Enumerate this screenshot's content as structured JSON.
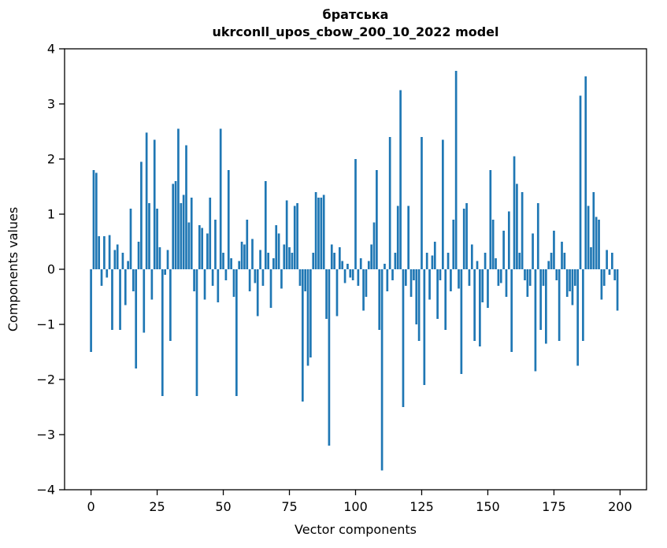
{
  "chart_data": {
    "type": "bar",
    "title": "братська",
    "subtitle": "ukrconll_upos_cbow_200_10_2022 model",
    "xlabel": "Vector components",
    "ylabel": "Components values",
    "xlim": [
      -10,
      210
    ],
    "ylim": [
      -4,
      4
    ],
    "x_ticks": [
      0,
      25,
      50,
      75,
      100,
      125,
      150,
      175,
      200
    ],
    "y_ticks": [
      -4,
      -3,
      -2,
      -1,
      0,
      1,
      2,
      3,
      4
    ],
    "bar_color": "#1f77b4",
    "axis_color": "#000000",
    "grid": false,
    "legend": "none",
    "n_components": 200,
    "values": [
      -1.5,
      1.8,
      1.75,
      0.6,
      -0.3,
      0.6,
      -0.15,
      0.62,
      -1.1,
      0.35,
      0.45,
      -1.1,
      0.3,
      -0.65,
      0.15,
      1.1,
      -0.4,
      -1.8,
      0.5,
      1.95,
      -1.15,
      2.48,
      1.2,
      -0.55,
      2.35,
      1.1,
      0.4,
      -2.3,
      -0.1,
      0.35,
      -1.3,
      1.55,
      1.6,
      2.55,
      1.2,
      1.35,
      2.25,
      0.85,
      1.3,
      -0.4,
      -2.3,
      0.8,
      0.75,
      -0.55,
      0.65,
      1.3,
      -0.3,
      0.9,
      -0.6,
      2.55,
      0.3,
      -0.2,
      1.8,
      0.2,
      -0.5,
      -2.3,
      0.15,
      0.5,
      0.45,
      0.9,
      -0.4,
      0.55,
      -0.25,
      -0.85,
      0.35,
      -0.3,
      1.6,
      0.3,
      -0.7,
      0.2,
      0.8,
      0.65,
      -0.35,
      0.45,
      1.25,
      0.4,
      0.3,
      1.15,
      1.2,
      -0.3,
      -2.4,
      -0.4,
      -1.75,
      -1.6,
      0.3,
      1.4,
      1.3,
      1.3,
      1.35,
      -0.9,
      -3.2,
      0.45,
      0.3,
      -0.85,
      0.4,
      0.15,
      -0.25,
      0.1,
      -0.15,
      -0.2,
      2.0,
      -0.3,
      0.2,
      -0.75,
      -0.5,
      0.15,
      0.45,
      0.85,
      1.8,
      -1.1,
      -3.65,
      0.1,
      -0.4,
      2.4,
      -0.2,
      0.3,
      1.15,
      3.25,
      -2.5,
      -0.3,
      1.15,
      -0.5,
      -0.2,
      -1.0,
      -1.3,
      2.4,
      -2.1,
      0.3,
      -0.55,
      0.25,
      0.5,
      -0.9,
      -0.2,
      2.35,
      -1.1,
      0.3,
      -0.4,
      0.9,
      3.6,
      -0.35,
      -1.9,
      1.1,
      1.2,
      -0.3,
      0.45,
      -1.3,
      0.15,
      -1.4,
      -0.6,
      0.3,
      -0.7,
      1.8,
      0.9,
      0.2,
      -0.3,
      -0.25,
      0.7,
      -0.5,
      1.05,
      -1.5,
      2.05,
      1.55,
      0.3,
      1.4,
      -0.2,
      -0.5,
      -0.3,
      0.65,
      -1.85,
      1.2,
      -1.1,
      -0.3,
      -1.35,
      0.15,
      0.3,
      0.7,
      -0.2,
      -1.3,
      0.5,
      0.3,
      -0.5,
      -0.4,
      -0.65,
      -0.3,
      -1.75,
      3.15,
      -1.3,
      3.5,
      1.15,
      0.4,
      1.4,
      0.95,
      0.9,
      -0.55,
      -0.3,
      0.35,
      -0.1,
      0.3,
      -0.2,
      -0.75
    ]
  }
}
